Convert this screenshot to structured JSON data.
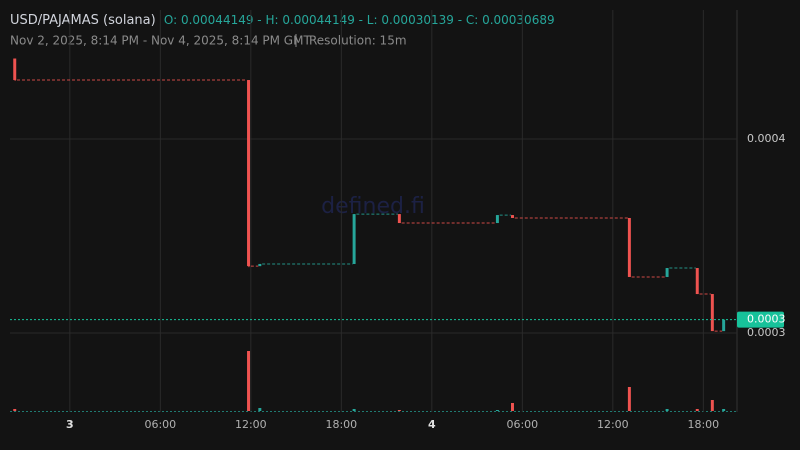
{
  "chart_data": {
    "type": "candlestick",
    "title": "USD/PAJAMAS (solana)",
    "ohlc_text": "O: 0.00044149 - H: 0.00044149 - L: 0.00030139 - C: 0.00030689",
    "subtitle": "Nov 2, 2025, 8:14 PM - Nov 4, 2025, 8:14 PM GMT",
    "resolution": "Resolution: 15m",
    "watermark": "defined.fi",
    "x": [
      "2025-11-02T20:15",
      "2025-11-03T11:45",
      "2025-11-03T12:30",
      "2025-11-03T18:45",
      "2025-11-03T21:45",
      "2025-11-04T04:15",
      "2025-11-04T05:15",
      "2025-11-04T13:00",
      "2025-11-04T15:30",
      "2025-11-04T17:30",
      "2025-11-04T18:30",
      "2025-11-04T19:15"
    ],
    "open": [
      0.00044149,
      0.0004304,
      0.0003345,
      0.0003356,
      0.0003613,
      0.0003567,
      0.0003608,
      0.0003593,
      0.0003289,
      0.0003335,
      0.0003201,
      0.000301
    ],
    "high": [
      0.00044149,
      0.0004304,
      0.0003356,
      0.0003613,
      0.0003613,
      0.0003608,
      0.0003608,
      0.0003593,
      0.0003335,
      0.0003335,
      0.0003201,
      0.00030689
    ],
    "low": [
      0.00043,
      0.000334,
      0.0003345,
      0.0003356,
      0.0003567,
      0.0003567,
      0.0003593,
      0.0003289,
      0.0003289,
      0.0003201,
      0.00030139,
      0.000301
    ],
    "close": [
      0.0004304,
      0.0003345,
      0.0003356,
      0.0003613,
      0.0003567,
      0.0003608,
      0.0003593,
      0.0003289,
      0.0003335,
      0.0003201,
      0.000301,
      0.00030689
    ],
    "volume": [
      2,
      60,
      3,
      2,
      1,
      1,
      8,
      24,
      2,
      2,
      11,
      2
    ],
    "colors": {
      "up": "#26a69a",
      "down": "#ef5350"
    },
    "xlim": [
      "2025-11-02T20:14",
      "2025-11-04T20:14"
    ],
    "xticks": [
      {
        "value": "2025-11-03T00:00",
        "label": "3"
      },
      {
        "value": "2025-11-03T06:00",
        "label": "06:00"
      },
      {
        "value": "2025-11-03T12:00",
        "label": "12:00"
      },
      {
        "value": "2025-11-03T18:00",
        "label": "18:00"
      },
      {
        "value": "2025-11-04T00:00",
        "label": "4"
      },
      {
        "value": "2025-11-04T06:00",
        "label": "06:00"
      },
      {
        "value": "2025-11-04T12:00",
        "label": "12:00"
      },
      {
        "value": "2025-11-04T18:00",
        "label": "18:00"
      }
    ],
    "ylim": [
      0.0002593,
      0.0004665
    ],
    "yticks": [
      0.0004,
      0.0003
    ],
    "last_price": {
      "value": 0.00030689,
      "label": "0.0003"
    },
    "grid": true
  }
}
